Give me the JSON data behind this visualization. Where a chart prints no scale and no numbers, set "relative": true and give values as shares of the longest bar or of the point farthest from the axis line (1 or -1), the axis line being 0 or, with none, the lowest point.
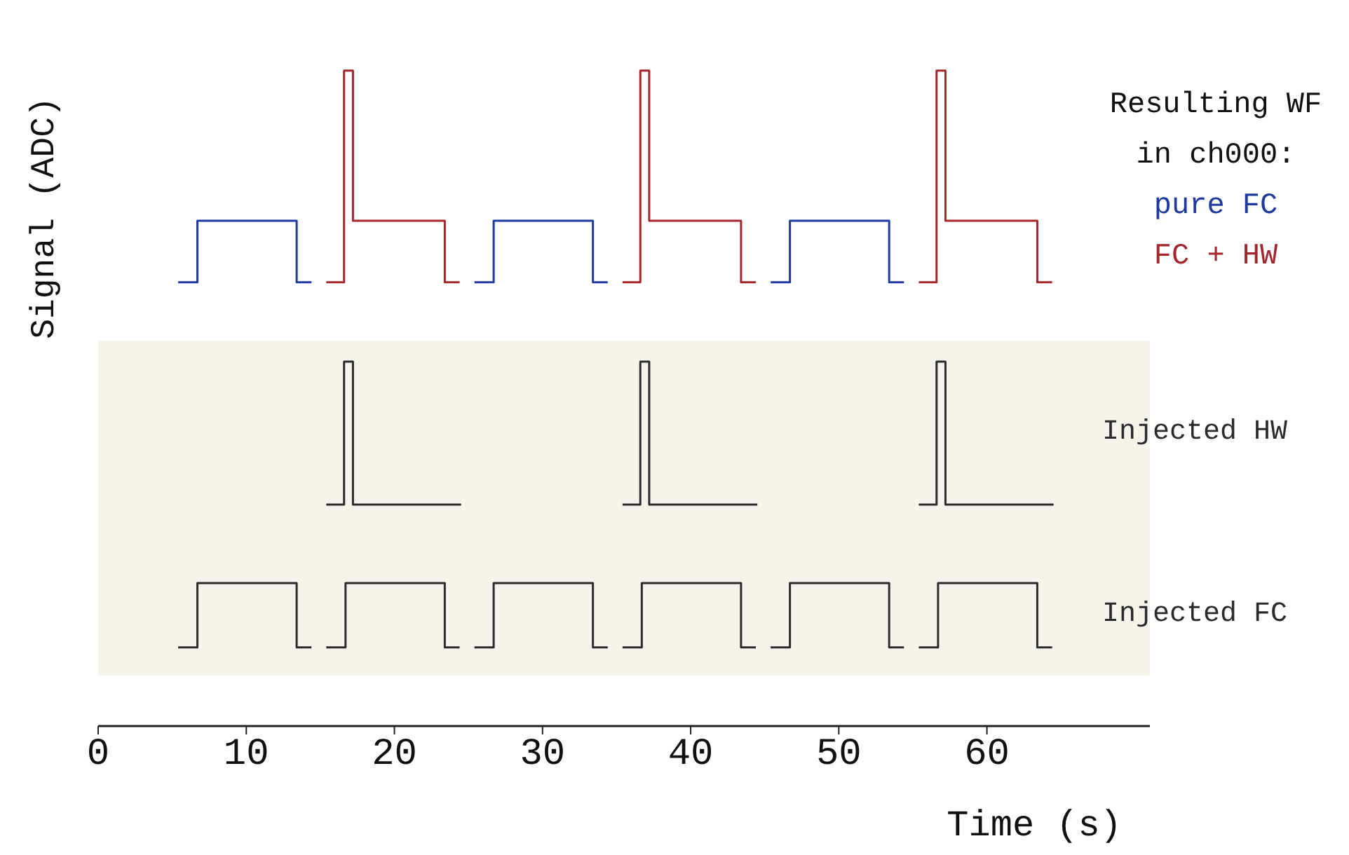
{
  "chart_data": {
    "type": "line",
    "relative": true,
    "xlabel": "Time (s)",
    "ylabel": "Signal (ADC)",
    "xlim": [
      0,
      71
    ],
    "xticks": [
      0,
      10,
      20,
      30,
      40,
      50,
      60
    ],
    "grid": false,
    "marker": "none",
    "line_style": "solid",
    "tick_labels": "x",
    "annotations": [
      "Resulting WF in ch000:"
    ],
    "bands": [
      {
        "axis": "y",
        "from": 0.077,
        "to": 0.588,
        "color": "#f6f3ec"
      }
    ],
    "series": [
      {
        "name": "pure FC",
        "color": "#1f3a9e",
        "x": [
          5.4,
          6.7,
          6.7,
          13.4,
          13.4,
          14.4,
          15,
          25.4,
          26.7,
          26.7,
          33.4,
          33.4,
          34.4,
          35,
          45.4,
          46.7,
          46.7,
          53.4,
          53.4,
          54.4
        ],
        "values": [
          0.677,
          0.677,
          0.771,
          0.771,
          0.677,
          0.677,
          null,
          0.677,
          0.677,
          0.771,
          0.771,
          0.677,
          0.677,
          null,
          0.677,
          0.677,
          0.771,
          0.771,
          0.677,
          0.677
        ]
      },
      {
        "name": "FC + HW",
        "color": "#a3262c",
        "x": [
          15.4,
          16.6,
          16.6,
          17.2,
          17.2,
          23.4,
          23.4,
          24.4,
          25,
          35.4,
          36.6,
          36.6,
          37.2,
          37.2,
          43.4,
          43.4,
          44.4,
          45,
          55.4,
          56.6,
          56.6,
          57.2,
          57.2,
          63.4,
          63.4,
          64.4
        ],
        "values": [
          0.677,
          0.677,
          1,
          1,
          0.771,
          0.771,
          0.677,
          0.677,
          null,
          0.677,
          0.677,
          1,
          1,
          0.771,
          0.771,
          0.677,
          0.677,
          null,
          0.677,
          0.677,
          1,
          1,
          0.771,
          0.771,
          0.677,
          0.677
        ]
      },
      {
        "name": "Injected HW",
        "color": "#2b2b2b",
        "x": [
          15.4,
          16.6,
          16.6,
          17.2,
          17.2,
          24.5,
          25,
          35.4,
          36.6,
          36.6,
          37.2,
          37.2,
          44.5,
          45,
          55.4,
          56.6,
          56.6,
          57.2,
          57.2,
          64.5
        ],
        "values": [
          0.338,
          0.338,
          0.556,
          0.556,
          0.338,
          0.338,
          null,
          0.338,
          0.338,
          0.556,
          0.556,
          0.338,
          0.338,
          null,
          0.338,
          0.338,
          0.556,
          0.556,
          0.338,
          0.338
        ]
      },
      {
        "name": "Injected FC",
        "color": "#2b2b2b",
        "x": [
          5.4,
          6.7,
          6.7,
          13.4,
          13.4,
          14.4,
          15,
          15.4,
          16.7,
          16.7,
          23.4,
          23.4,
          24.4,
          25,
          25.4,
          26.7,
          26.7,
          33.4,
          33.4,
          34.4,
          35,
          35.4,
          36.7,
          36.7,
          43.4,
          43.4,
          44.4,
          45,
          45.4,
          46.7,
          46.7,
          53.4,
          53.4,
          54.4,
          55,
          55.4,
          56.7,
          56.7,
          63.4,
          63.4,
          64.4
        ],
        "values": [
          0.12,
          0.12,
          0.218,
          0.218,
          0.12,
          0.12,
          null,
          0.12,
          0.12,
          0.218,
          0.218,
          0.12,
          0.12,
          null,
          0.12,
          0.12,
          0.218,
          0.218,
          0.12,
          0.12,
          null,
          0.12,
          0.12,
          0.218,
          0.218,
          0.12,
          0.12,
          null,
          0.12,
          0.12,
          0.218,
          0.218,
          0.12,
          0.12,
          null,
          0.12,
          0.12,
          0.218,
          0.218,
          0.12,
          0.12
        ]
      }
    ]
  }
}
